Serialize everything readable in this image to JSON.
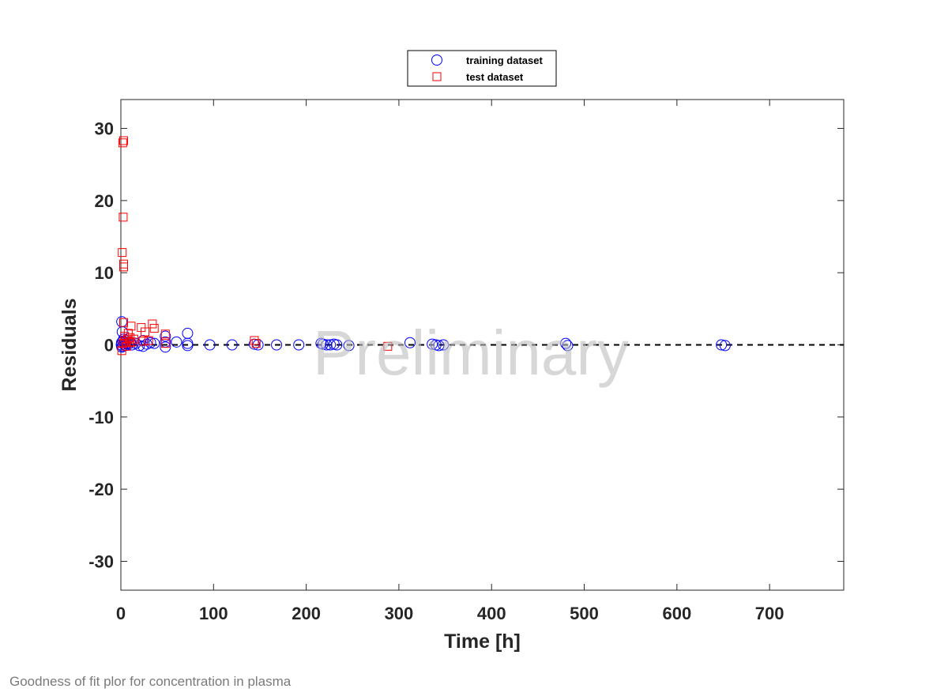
{
  "chart_data": {
    "type": "scatter",
    "xlabel": "Time [h]",
    "ylabel": "Residuals",
    "xlim": [
      0,
      780
    ],
    "ylim": [
      -34,
      34
    ],
    "xticks": [
      0,
      100,
      200,
      300,
      400,
      500,
      600,
      700
    ],
    "yticks": [
      -30,
      -20,
      -10,
      0,
      10,
      20,
      30
    ],
    "grid": false,
    "legend_position": "top-center-outside",
    "reference_line": {
      "y": 0,
      "style": "dashed",
      "color": "#000000"
    },
    "watermark": "Preliminary",
    "series": [
      {
        "name": "training dataset",
        "marker": "circle",
        "color": "#0000ff",
        "points": [
          [
            0.5,
            0.0
          ],
          [
            0.8,
            0.3
          ],
          [
            1.0,
            3.2
          ],
          [
            1.0,
            -0.3
          ],
          [
            1.5,
            1.8
          ],
          [
            2.0,
            0.5
          ],
          [
            2.0,
            -0.2
          ],
          [
            3.0,
            0.8
          ],
          [
            3.0,
            0.1
          ],
          [
            4.0,
            0.3
          ],
          [
            5.0,
            -0.1
          ],
          [
            6.0,
            0.2
          ],
          [
            8.0,
            0.1
          ],
          [
            10.0,
            0.4
          ],
          [
            12.0,
            0.0
          ],
          [
            16.0,
            0.2
          ],
          [
            20.0,
            -0.1
          ],
          [
            24.0,
            0.6
          ],
          [
            24.0,
            -0.2
          ],
          [
            28.0,
            0.1
          ],
          [
            32.0,
            0.3
          ],
          [
            36.0,
            0.2
          ],
          [
            48.0,
            1.2
          ],
          [
            48.0,
            0.4
          ],
          [
            48.0,
            -0.3
          ],
          [
            60.0,
            0.4
          ],
          [
            72.0,
            1.6
          ],
          [
            72.0,
            0.2
          ],
          [
            72.0,
            -0.1
          ],
          [
            96.0,
            0.0
          ],
          [
            120.0,
            0.0
          ],
          [
            144.0,
            0.1
          ],
          [
            148.0,
            0.0
          ],
          [
            168.0,
            0.0
          ],
          [
            192.0,
            0.0
          ],
          [
            216.0,
            0.2
          ],
          [
            218.0,
            0.1
          ],
          [
            222.0,
            0.0
          ],
          [
            226.0,
            0.0
          ],
          [
            230.0,
            0.1
          ],
          [
            233.0,
            0.0
          ],
          [
            246.0,
            -0.1
          ],
          [
            312.0,
            0.3
          ],
          [
            336.0,
            0.1
          ],
          [
            340.0,
            0.0
          ],
          [
            343.0,
            -0.1
          ],
          [
            348.0,
            0.0
          ],
          [
            480.0,
            0.2
          ],
          [
            482.0,
            -0.1
          ],
          [
            648.0,
            0.0
          ],
          [
            652.0,
            -0.1
          ]
        ]
      },
      {
        "name": "test dataset",
        "marker": "square",
        "color": "#ff0000",
        "points": [
          [
            2.0,
            28.0
          ],
          [
            3.0,
            28.3
          ],
          [
            2.5,
            17.7
          ],
          [
            1.5,
            12.8
          ],
          [
            3.0,
            11.2
          ],
          [
            3.0,
            10.8
          ],
          [
            1.0,
            -0.8
          ],
          [
            2.0,
            0.2
          ],
          [
            3.0,
            3.1
          ],
          [
            4.0,
            1.2
          ],
          [
            5.0,
            0.5
          ],
          [
            6.0,
            -0.2
          ],
          [
            7.0,
            0.8
          ],
          [
            8.0,
            1.6
          ],
          [
            9.0,
            0.3
          ],
          [
            10.0,
            1.0
          ],
          [
            11.0,
            2.6
          ],
          [
            12.0,
            0.4
          ],
          [
            14.0,
            0.8
          ],
          [
            22.0,
            2.4
          ],
          [
            24.0,
            0.5
          ],
          [
            26.0,
            1.8
          ],
          [
            30.0,
            0.6
          ],
          [
            34.0,
            2.9
          ],
          [
            36.0,
            2.3
          ],
          [
            48.0,
            1.5
          ],
          [
            48.0,
            0.2
          ],
          [
            144.0,
            0.6
          ],
          [
            146.0,
            0.2
          ],
          [
            288.0,
            -0.2
          ]
        ]
      }
    ]
  },
  "caption": "Goodness of fit plor for concentration in plasma"
}
